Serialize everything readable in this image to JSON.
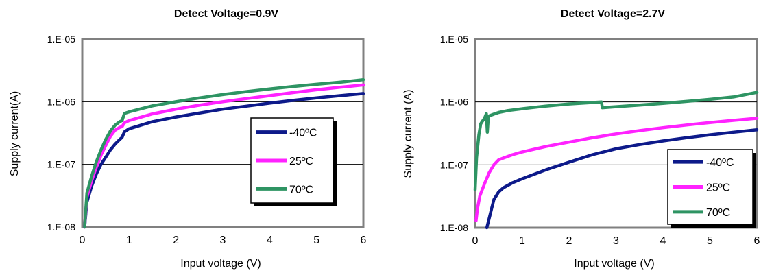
{
  "chart_data": [
    {
      "type": "line",
      "title": "Detect Voltage=0.9V",
      "xlabel": "Input voltage (V)",
      "ylabel": "Supply current(A)",
      "xlim": [
        0,
        6
      ],
      "ylim": [
        1e-08,
        1e-05
      ],
      "yscale": "log",
      "x_ticks": [
        "0",
        "1",
        "2",
        "3",
        "4",
        "5",
        "6"
      ],
      "y_ticks": [
        "1.E-08",
        "1.E-07",
        "1.E-06",
        "1.E-05"
      ],
      "grid": "horizontal",
      "legend_position": "right",
      "series": [
        {
          "name": "-40ºC",
          "color": "#0d1a8a",
          "x": [
            0.05,
            0.1,
            0.2,
            0.3,
            0.4,
            0.5,
            0.6,
            0.7,
            0.8,
            0.85,
            0.9,
            1.0,
            1.5,
            2.0,
            2.5,
            3.0,
            3.5,
            4.0,
            4.5,
            5.0,
            5.5,
            6.0
          ],
          "y": [
            1e-08,
            2.5e-08,
            4.5e-08,
            7e-08,
            1e-07,
            1.3e-07,
            1.7e-07,
            2.1e-07,
            2.5e-07,
            2.7e-07,
            3.3e-07,
            3.7e-07,
            4.8e-07,
            5.7e-07,
            6.6e-07,
            7.6e-07,
            8.5e-07,
            9.5e-07,
            1.05e-06,
            1.15e-06,
            1.25e-06,
            1.35e-06
          ]
        },
        {
          "name": "25ºC",
          "color": "#ff22ff",
          "x": [
            0.05,
            0.1,
            0.2,
            0.3,
            0.4,
            0.5,
            0.6,
            0.7,
            0.8,
            0.85,
            0.9,
            1.0,
            1.5,
            2.0,
            2.5,
            3.0,
            3.5,
            4.0,
            4.5,
            5.0,
            5.5,
            6.0
          ],
          "y": [
            1e-08,
            3e-08,
            5.5e-08,
            9e-08,
            1.4e-07,
            2e-07,
            2.8e-07,
            3.5e-07,
            3.9e-07,
            4e-07,
            4.6e-07,
            5e-07,
            6.4e-07,
            7.6e-07,
            8.8e-07,
            1e-06,
            1.12e-06,
            1.25e-06,
            1.4e-06,
            1.55e-06,
            1.7e-06,
            1.85e-06
          ]
        },
        {
          "name": "70ºC",
          "color": "#2e9463",
          "x": [
            0.05,
            0.1,
            0.2,
            0.3,
            0.4,
            0.5,
            0.6,
            0.7,
            0.8,
            0.85,
            0.9,
            1.0,
            1.5,
            2.0,
            2.5,
            3.0,
            3.5,
            4.0,
            4.5,
            5.0,
            5.5,
            6.0
          ],
          "y": [
            1e-08,
            3.5e-08,
            6.5e-08,
            1.1e-07,
            1.7e-07,
            2.5e-07,
            3.4e-07,
            4.2e-07,
            4.8e-07,
            5e-07,
            6.5e-07,
            6.9e-07,
            8.6e-07,
            1e-06,
            1.15e-06,
            1.3e-06,
            1.45e-06,
            1.6e-06,
            1.75e-06,
            1.9e-06,
            2.05e-06,
            2.25e-06
          ]
        }
      ]
    },
    {
      "type": "line",
      "title": "Detect Voltage=2.7V",
      "xlabel": "Input voltage (V)",
      "ylabel": "Supply current (A)",
      "xlim": [
        0,
        6
      ],
      "ylim": [
        1e-08,
        1e-05
      ],
      "yscale": "log",
      "x_ticks": [
        "0",
        "1",
        "2",
        "3",
        "4",
        "5",
        "6"
      ],
      "y_ticks": [
        "1.E-08",
        "1.E-07",
        "1.E-06",
        "1.E-05"
      ],
      "grid": "horizontal",
      "legend_position": "bottom-right",
      "series": [
        {
          "name": "-40ºC",
          "color": "#0d1a8a",
          "x": [
            0.25,
            0.3,
            0.35,
            0.4,
            0.5,
            0.6,
            0.8,
            1.0,
            1.5,
            2.0,
            2.5,
            3.0,
            3.5,
            4.0,
            4.5,
            5.0,
            5.5,
            6.0
          ],
          "y": [
            1e-08,
            1.4e-08,
            2e-08,
            2.8e-08,
            3.7e-08,
            4.3e-08,
            5.2e-08,
            6e-08,
            8.3e-08,
            1.1e-07,
            1.45e-07,
            1.8e-07,
            2.1e-07,
            2.4e-07,
            2.7e-07,
            3e-07,
            3.3e-07,
            3.6e-07
          ]
        },
        {
          "name": "25ºC",
          "color": "#ff22ff",
          "x": [
            0.02,
            0.05,
            0.1,
            0.15,
            0.2,
            0.3,
            0.4,
            0.5,
            0.6,
            0.8,
            1.0,
            1.5,
            2.0,
            2.5,
            3.0,
            3.5,
            4.0,
            4.5,
            5.0,
            5.5,
            6.0
          ],
          "y": [
            1.3e-08,
            2e-08,
            3.2e-08,
            4e-08,
            5e-08,
            7.5e-08,
            1e-07,
            1.2e-07,
            1.28e-07,
            1.45e-07,
            1.6e-07,
            1.95e-07,
            2.3e-07,
            2.7e-07,
            3.1e-07,
            3.5e-07,
            3.9e-07,
            4.3e-07,
            4.7e-07,
            5.1e-07,
            5.5e-07
          ]
        },
        {
          "name": "70ºC",
          "color": "#2e9463",
          "x": [
            0.0,
            0.03,
            0.08,
            0.12,
            0.16,
            0.2,
            0.24,
            0.26,
            0.28,
            0.3,
            0.4,
            0.5,
            0.7,
            1.0,
            1.5,
            2.0,
            2.5,
            2.69,
            2.71,
            3.0,
            3.5,
            4.0,
            4.5,
            5.0,
            5.5,
            6.0
          ],
          "y": [
            4e-08,
            1.3e-07,
            3e-07,
            4.5e-07,
            5e-07,
            5.5e-07,
            6.5e-07,
            3.3e-07,
            5.5e-07,
            6e-07,
            6.4e-07,
            6.8e-07,
            7.3e-07,
            7.8e-07,
            8.6e-07,
            9.3e-07,
            9.8e-07,
            1e-06,
            8.1e-07,
            8.4e-07,
            8.9e-07,
            9.5e-07,
            1.02e-06,
            1.1e-06,
            1.2e-06,
            1.42e-06
          ]
        }
      ]
    }
  ]
}
